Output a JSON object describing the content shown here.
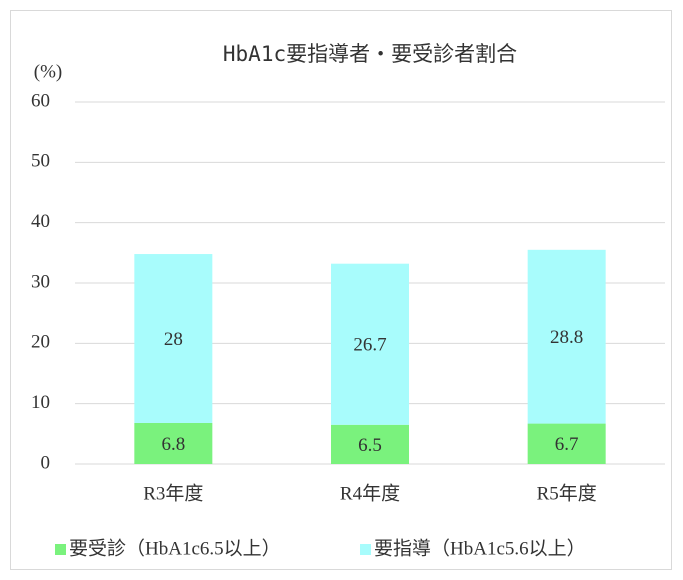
{
  "chart_data": {
    "type": "stacked_bar",
    "title": "HbA1c要指導者・要受診者割合",
    "ylabel": "(%)",
    "categories": [
      "R3年度",
      "R4年度",
      "R5年度"
    ],
    "series": [
      {
        "name": "要受診（HbA1c6.5以上）",
        "color": "#7af27d",
        "values": [
          6.8,
          6.5,
          6.7
        ]
      },
      {
        "name": "要指導（HbA1c5.6以上）",
        "color": "#a8fcfc",
        "values": [
          28,
          26.7,
          28.8
        ]
      }
    ],
    "ylim": [
      0,
      60
    ],
    "yticks": [
      0,
      10,
      20,
      30,
      40,
      50,
      60
    ],
    "grid": true,
    "legend": "bottom"
  }
}
